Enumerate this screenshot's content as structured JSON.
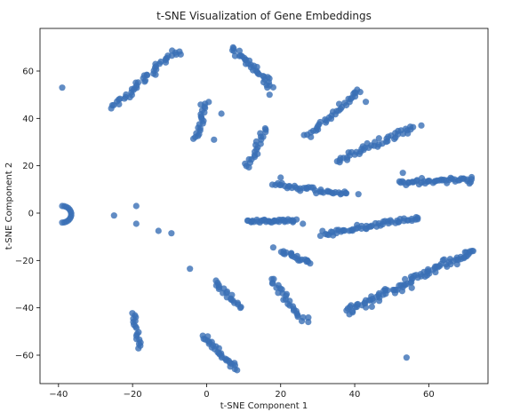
{
  "chart_data": {
    "type": "scatter",
    "title": "t-SNE Visualization of Gene Embeddings",
    "xlabel": "t-SNE Component 1",
    "ylabel": "t-SNE Component 2",
    "xlim": [
      -45,
      76
    ],
    "ylim": [
      -72,
      78
    ],
    "xticks": [
      -40,
      -20,
      0,
      20,
      40,
      60
    ],
    "yticks": [
      -60,
      -40,
      -20,
      0,
      20,
      40,
      60
    ],
    "grid": false,
    "point_color": "#3a6fb5",
    "clusters": [
      {
        "from": [
          -25,
          44.5
        ],
        "to": [
          -8,
          69
        ],
        "n": 45,
        "jitter": 1.1
      },
      {
        "from": [
          7,
          70
        ],
        "to": [
          18,
          53
        ],
        "n": 35,
        "jitter": 1.1
      },
      {
        "from": [
          -3,
          31
        ],
        "to": [
          0,
          47
        ],
        "n": 22,
        "jitter": 0.9
      },
      {
        "from": [
          11,
          19
        ],
        "to": [
          16,
          36
        ],
        "n": 22,
        "jitter": 1.0
      },
      {
        "from": [
          27,
          32
        ],
        "to": [
          41,
          52
        ],
        "n": 35,
        "jitter": 1.1
      },
      {
        "from": [
          35,
          22
        ],
        "to": [
          56,
          36
        ],
        "n": 45,
        "jitter": 1.1
      },
      {
        "from": [
          52,
          13
        ],
        "to": [
          72,
          14
        ],
        "n": 45,
        "jitter": 1.0
      },
      {
        "from": [
          18,
          12
        ],
        "to": [
          38,
          8
        ],
        "n": 40,
        "jitter": 0.9
      },
      {
        "from": [
          11,
          -3.5
        ],
        "to": [
          24,
          -3
        ],
        "n": 35,
        "jitter": 0.6
      },
      {
        "from": [
          31,
          -9
        ],
        "to": [
          57,
          -2
        ],
        "n": 55,
        "jitter": 1.0
      },
      {
        "from": [
          20,
          -16
        ],
        "to": [
          28,
          -21
        ],
        "n": 20,
        "jitter": 0.8
      },
      {
        "from": [
          38,
          -42
        ],
        "to": [
          72,
          -16
        ],
        "n": 95,
        "jitter": 1.7
      },
      {
        "from": [
          2,
          -29
        ],
        "to": [
          9,
          -40
        ],
        "n": 20,
        "jitter": 0.9
      },
      {
        "from": [
          17,
          -28
        ],
        "to": [
          27,
          -46
        ],
        "n": 28,
        "jitter": 1.0
      },
      {
        "from": [
          -20,
          -42
        ],
        "to": [
          -18,
          -57
        ],
        "n": 18,
        "jitter": 0.6
      },
      {
        "from": [
          -1,
          -52
        ],
        "to": [
          8,
          -66
        ],
        "n": 30,
        "jitter": 0.9
      }
    ],
    "ring": {
      "center": [
        -39,
        -0.5
      ],
      "radius": 3.5,
      "n": 14
    },
    "outliers": [
      {
        "x": -39,
        "y": 53
      },
      {
        "x": -25,
        "y": -1
      },
      {
        "x": -19,
        "y": 3
      },
      {
        "x": -19,
        "y": -4.5
      },
      {
        "x": -13,
        "y": -7.5
      },
      {
        "x": -9.5,
        "y": -8.5
      },
      {
        "x": -4.5,
        "y": -23.5
      },
      {
        "x": -7,
        "y": 67
      },
      {
        "x": 17,
        "y": 50
      },
      {
        "x": 2,
        "y": 31
      },
      {
        "x": 4,
        "y": 42
      },
      {
        "x": 40,
        "y": 51
      },
      {
        "x": 43,
        "y": 47
      },
      {
        "x": 58,
        "y": 37
      },
      {
        "x": 53,
        "y": 17
      },
      {
        "x": 71,
        "y": 12.5
      },
      {
        "x": 41,
        "y": 8
      },
      {
        "x": 20,
        "y": 15
      },
      {
        "x": 26,
        "y": -4.5
      },
      {
        "x": 27,
        "y": -20.5
      },
      {
        "x": 18,
        "y": -14.5
      },
      {
        "x": 57,
        "y": -2
      },
      {
        "x": 72,
        "y": -16
      },
      {
        "x": 54,
        "y": -61
      }
    ]
  }
}
